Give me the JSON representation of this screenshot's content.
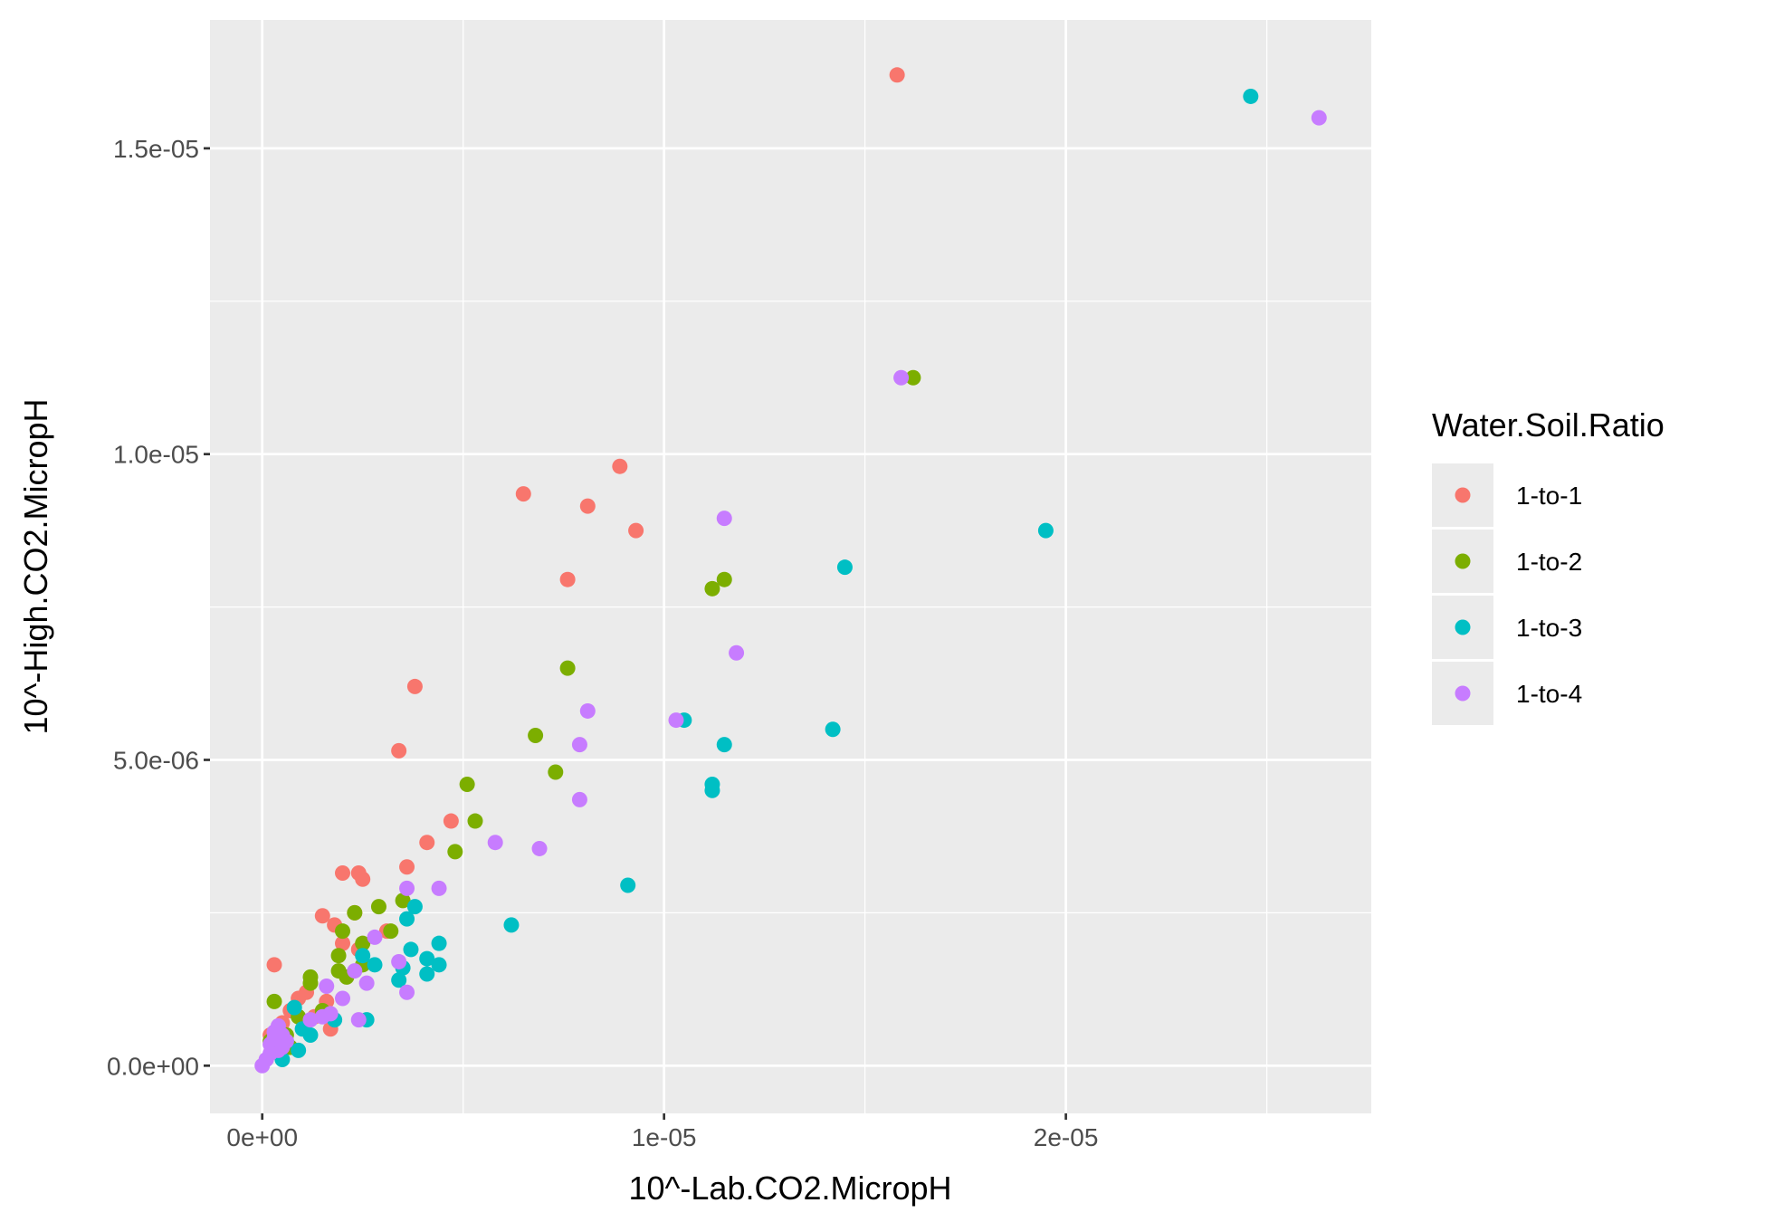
{
  "chart_data": {
    "type": "scatter",
    "xlabel": "10^-Lab.CO2.MicropH",
    "ylabel": "10^-High.CO2.MicropH",
    "xlim": [
      -1.3e-06,
      2.76e-05
    ],
    "ylim": [
      -7.8e-07,
      1.71e-05
    ],
    "x_ticks": [
      0,
      1e-05,
      2e-05
    ],
    "x_tick_labels": [
      "0e+00",
      "1e-05",
      "2e-05"
    ],
    "x_minor_ticks": [
      5e-06,
      1.5e-05,
      2.5e-05
    ],
    "y_ticks": [
      0,
      5e-06,
      1e-05,
      1.5e-05
    ],
    "y_tick_labels": [
      "0.0e+00",
      "5.0e-06",
      "1.0e-05",
      "1.5e-05"
    ],
    "y_minor_ticks": [
      2.5e-06,
      7.5e-06,
      1.25e-05
    ],
    "grid": true,
    "legend": {
      "title": "Water.Soil.Ratio",
      "position": "right"
    },
    "series": [
      {
        "name": "1-to-1",
        "color": "#F8766D",
        "points": [
          [
            1.58e-05,
            1.62e-05
          ],
          [
            8.9e-06,
            9.8e-06
          ],
          [
            6.5e-06,
            9.35e-06
          ],
          [
            8.1e-06,
            9.15e-06
          ],
          [
            9.3e-06,
            8.75e-06
          ],
          [
            7.6e-06,
            7.95e-06
          ],
          [
            3.8e-06,
            6.2e-06
          ],
          [
            3.4e-06,
            5.15e-06
          ],
          [
            4.7e-06,
            4e-06
          ],
          [
            4.1e-06,
            3.65e-06
          ],
          [
            3.6e-06,
            3.25e-06
          ],
          [
            2e-06,
            3.15e-06
          ],
          [
            2.4e-06,
            3.15e-06
          ],
          [
            2.5e-06,
            3.05e-06
          ],
          [
            1.5e-06,
            2.45e-06
          ],
          [
            2.3e-06,
            2.5e-06
          ],
          [
            1.8e-06,
            2.3e-06
          ],
          [
            2e-06,
            2e-06
          ],
          [
            3.1e-06,
            2.2e-06
          ],
          [
            2.4e-06,
            1.9e-06
          ],
          [
            1.1e-06,
            1.2e-06
          ],
          [
            3e-07,
            1.65e-06
          ],
          [
            1.6e-06,
            1.05e-06
          ],
          [
            1.7e-06,
            6e-07
          ],
          [
            7e-07,
            9e-07
          ],
          [
            9e-07,
            1.1e-06
          ],
          [
            5e-07,
            7e-07
          ],
          [
            1.3e-06,
            8e-07
          ],
          [
            2e-07,
            5e-07
          ],
          [
            4e-07,
            3e-07
          ]
        ]
      },
      {
        "name": "1-to-2",
        "color": "#7CAE00",
        "points": [
          [
            1.62e-05,
            1.125e-05
          ],
          [
            1.15e-05,
            7.95e-06
          ],
          [
            1.12e-05,
            7.8e-06
          ],
          [
            7.6e-06,
            6.5e-06
          ],
          [
            6.8e-06,
            5.4e-06
          ],
          [
            7.3e-06,
            4.8e-06
          ],
          [
            5.1e-06,
            4.6e-06
          ],
          [
            5.3e-06,
            4e-06
          ],
          [
            4.8e-06,
            3.5e-06
          ],
          [
            2.9e-06,
            2.6e-06
          ],
          [
            3.5e-06,
            2.7e-06
          ],
          [
            2.3e-06,
            2.5e-06
          ],
          [
            3.2e-06,
            2.2e-06
          ],
          [
            2e-06,
            2.2e-06
          ],
          [
            1.9e-06,
            1.8e-06
          ],
          [
            2.5e-06,
            2e-06
          ],
          [
            1.9e-06,
            1.55e-06
          ],
          [
            2.1e-06,
            1.45e-06
          ],
          [
            1.2e-06,
            1.45e-06
          ],
          [
            2.5e-06,
            1.65e-06
          ],
          [
            3e-07,
            1.05e-06
          ],
          [
            1.5e-06,
            9e-07
          ],
          [
            9e-07,
            8e-07
          ],
          [
            1.2e-06,
            1.35e-06
          ],
          [
            6e-07,
            5e-07
          ],
          [
            4e-07,
            6e-07
          ],
          [
            7e-07,
            3e-07
          ],
          [
            2e-07,
            4e-07
          ]
        ]
      },
      {
        "name": "1-to-3",
        "color": "#00BFC4",
        "points": [
          [
            2.46e-05,
            1.585e-05
          ],
          [
            1.95e-05,
            8.75e-06
          ],
          [
            1.45e-05,
            8.15e-06
          ],
          [
            1.05e-05,
            5.65e-06
          ],
          [
            1.42e-05,
            5.5e-06
          ],
          [
            1.15e-05,
            5.25e-06
          ],
          [
            1.12e-05,
            4.6e-06
          ],
          [
            1.12e-05,
            4.5e-06
          ],
          [
            9.1e-06,
            2.95e-06
          ],
          [
            6.2e-06,
            2.3e-06
          ],
          [
            3.8e-06,
            2.6e-06
          ],
          [
            3.6e-06,
            2.4e-06
          ],
          [
            3.7e-06,
            1.9e-06
          ],
          [
            4.4e-06,
            2e-06
          ],
          [
            4.1e-06,
            1.75e-06
          ],
          [
            4.4e-06,
            1.65e-06
          ],
          [
            3.5e-06,
            1.6e-06
          ],
          [
            2.8e-06,
            1.65e-06
          ],
          [
            2.5e-06,
            1.8e-06
          ],
          [
            4.1e-06,
            1.5e-06
          ],
          [
            3.4e-06,
            1.4e-06
          ],
          [
            2.6e-06,
            7.5e-07
          ],
          [
            1.8e-06,
            7.5e-07
          ],
          [
            9e-07,
            2.5e-07
          ],
          [
            1.2e-06,
            5e-07
          ],
          [
            8e-07,
            9.5e-07
          ],
          [
            5e-07,
            1e-07
          ],
          [
            1e-06,
            6e-07
          ],
          [
            6e-07,
            4e-07
          ]
        ]
      },
      {
        "name": "1-to-4",
        "color": "#C77CFF",
        "points": [
          [
            2.63e-05,
            1.55e-05
          ],
          [
            1.59e-05,
            1.125e-05
          ],
          [
            1.15e-05,
            8.95e-06
          ],
          [
            1.18e-05,
            6.75e-06
          ],
          [
            8.1e-06,
            5.8e-06
          ],
          [
            1.03e-05,
            5.65e-06
          ],
          [
            7.9e-06,
            5.25e-06
          ],
          [
            7.9e-06,
            4.35e-06
          ],
          [
            5.8e-06,
            3.65e-06
          ],
          [
            6.9e-06,
            3.55e-06
          ],
          [
            3.6e-06,
            2.9e-06
          ],
          [
            4.4e-06,
            2.9e-06
          ],
          [
            2.8e-06,
            2.1e-06
          ],
          [
            3.4e-06,
            1.7e-06
          ],
          [
            2.3e-06,
            1.55e-06
          ],
          [
            2.6e-06,
            1.35e-06
          ],
          [
            3.6e-06,
            1.2e-06
          ],
          [
            1.6e-06,
            1.3e-06
          ],
          [
            2e-06,
            1.1e-06
          ],
          [
            2.4e-06,
            7.5e-07
          ],
          [
            1.7e-06,
            8.5e-07
          ],
          [
            1.2e-06,
            7.5e-07
          ],
          [
            1.5e-06,
            8e-07
          ],
          [
            4e-07,
            6.5e-07
          ],
          [
            5e-07,
            5e-07
          ],
          [
            3e-07,
            4.5e-07
          ],
          [
            2e-07,
            3.5e-07
          ],
          [
            4e-07,
            2.5e-07
          ],
          [
            1e-07,
            1e-07
          ],
          [
            2e-07,
            2e-07
          ],
          [
            6e-07,
            4e-07
          ],
          [
            3e-07,
            5.5e-07
          ],
          [
            5e-07,
            3e-07
          ],
          [
            0.0,
            0.0
          ]
        ]
      }
    ]
  }
}
